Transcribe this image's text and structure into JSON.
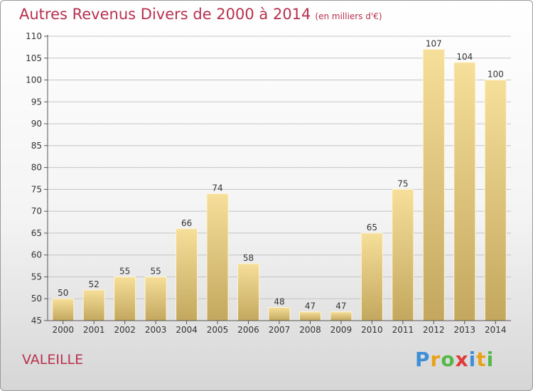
{
  "title": "Autres Revenus Divers de 2000 à 2014",
  "title_unit": "(en milliers d'€)",
  "town": "VALEILLE",
  "logo": {
    "letters": [
      "P",
      "r",
      "o",
      "x",
      "i",
      "t",
      "i"
    ],
    "colors": [
      "#3f8fd6",
      "#e8a21a",
      "#55b848",
      "#e03a3a",
      "#3f8fd6",
      "#e8a21a",
      "#55b848"
    ]
  },
  "colors": {
    "accent": "#b8304e",
    "bar_light": "#f6df9a",
    "bar_dark": "#c3a75e"
  },
  "chart_data": {
    "type": "bar",
    "categories": [
      "2000",
      "2001",
      "2002",
      "2003",
      "2004",
      "2005",
      "2006",
      "2007",
      "2008",
      "2009",
      "2010",
      "2011",
      "2012",
      "2013",
      "2014"
    ],
    "values": [
      50,
      52,
      55,
      55,
      66,
      74,
      58,
      48,
      47,
      47,
      65,
      75,
      107,
      104,
      100
    ],
    "data_labels": [
      "50",
      "52",
      "55",
      "55",
      "66",
      "74",
      "58",
      "48",
      "47",
      "47",
      "65",
      "75",
      "107",
      "104",
      "100"
    ],
    "title": "Autres Revenus Divers de 2000 à 2014",
    "xlabel": "",
    "ylabel": "",
    "ylim": [
      45,
      110
    ],
    "yticks": [
      45,
      50,
      55,
      60,
      65,
      70,
      75,
      80,
      85,
      90,
      95,
      100,
      105,
      110
    ],
    "grid": "horizontal",
    "legend": "none"
  }
}
